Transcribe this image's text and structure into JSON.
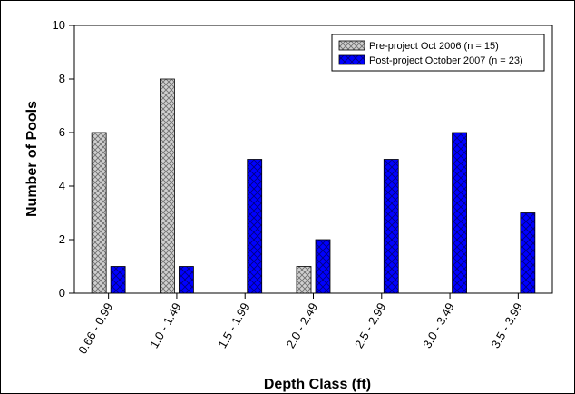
{
  "chart_data": {
    "type": "bar",
    "categories": [
      "0.66 - 0.99",
      "1.0 - 1.49",
      "1.5 - 1.99",
      "2.0 - 2.49",
      "2.5 - 2.99",
      "3.0 - 3.49",
      "3.5 - 3.99"
    ],
    "series": [
      {
        "name": "Pre-project Oct 2006 (n = 15)",
        "values": [
          6,
          8,
          0,
          1,
          0,
          0,
          0
        ],
        "color": "#c0c0c0",
        "pattern": "crosshatch"
      },
      {
        "name": "Post-project October 2007 (n = 23)",
        "values": [
          1,
          1,
          5,
          2,
          5,
          6,
          3
        ],
        "color": "#0000ff",
        "pattern": "crosshatch"
      }
    ],
    "xlabel": "Depth Class (ft)",
    "ylabel": "Number of Pools",
    "ylim": [
      0,
      10
    ],
    "yticks": [
      "0",
      "2",
      "4",
      "6",
      "8",
      "10"
    ],
    "grid": false,
    "legend_position": "top-right"
  }
}
